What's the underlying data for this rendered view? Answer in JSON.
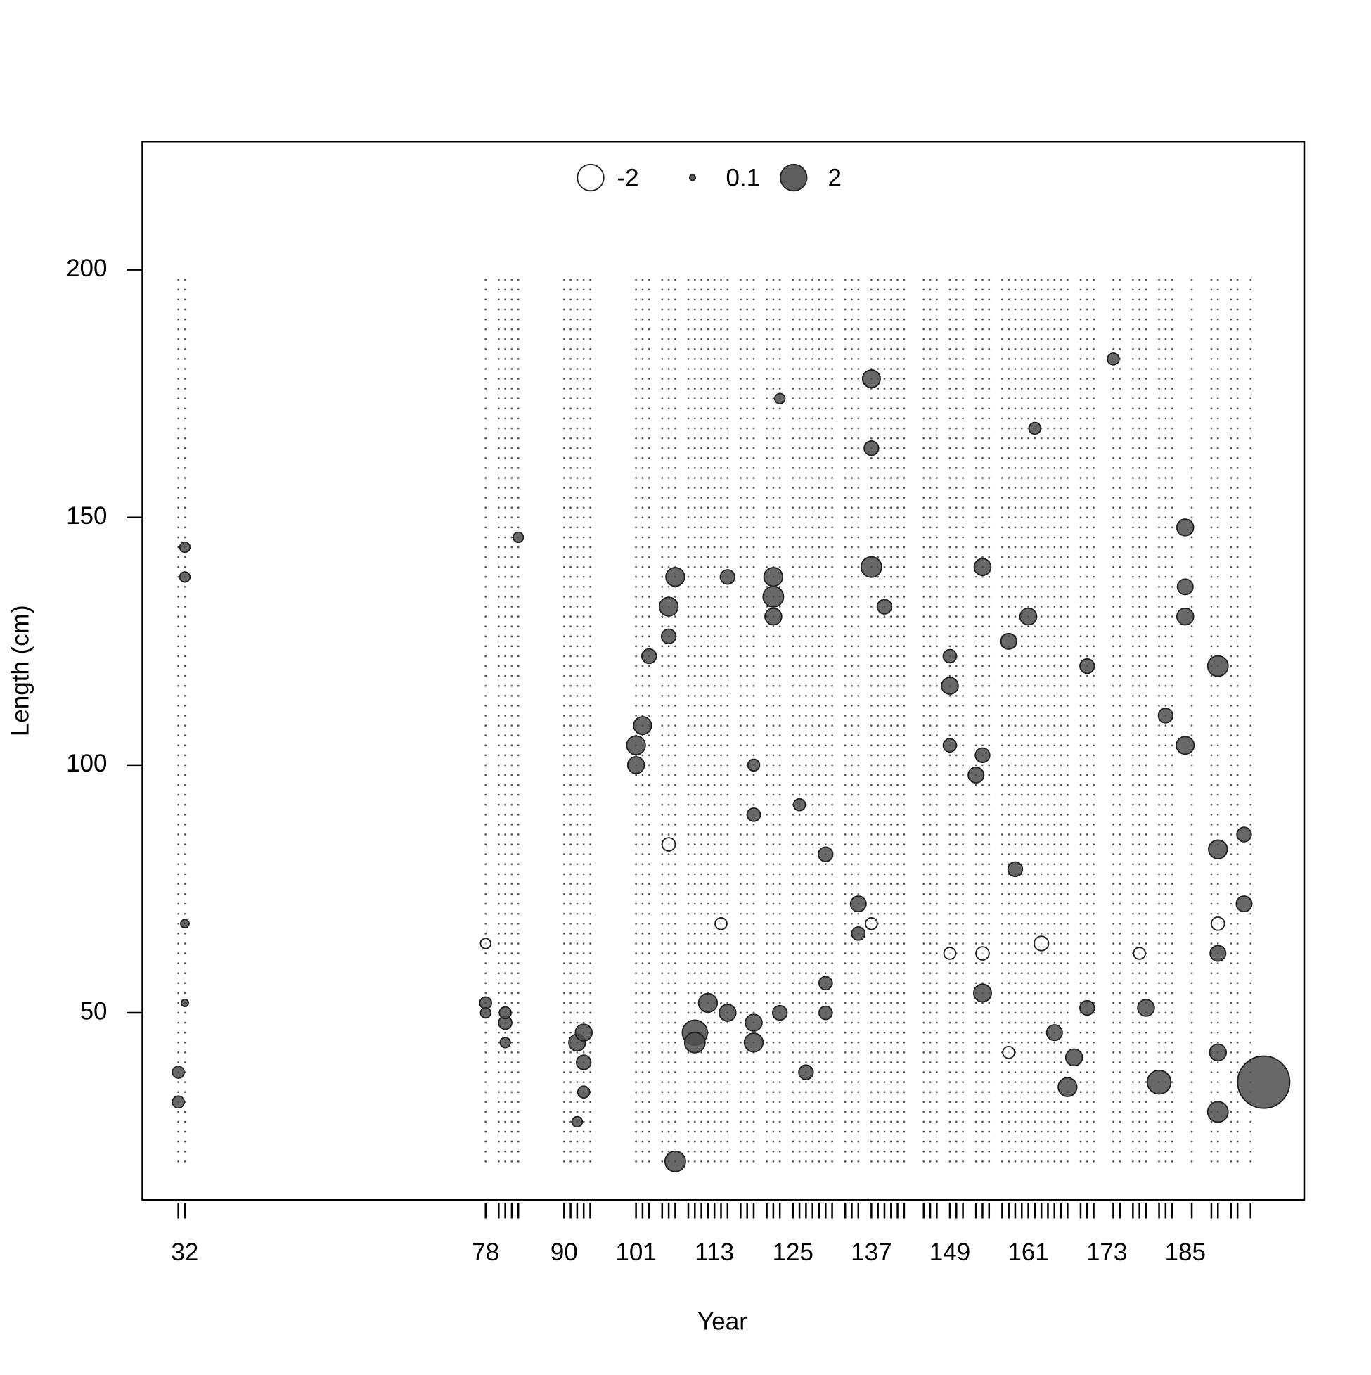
{
  "chart_data": {
    "type": "bubble",
    "xlabel": "Year",
    "ylabel": "Length (cm)",
    "xlim": [
      25.5,
      203.2
    ],
    "ylim": [
      12.2,
      225.9
    ],
    "xticks": [
      32,
      78,
      90,
      101,
      113,
      125,
      137,
      149,
      161,
      173,
      185
    ],
    "yticks": [
      50,
      100,
      150,
      200
    ],
    "legend_values": [
      -2,
      0.1,
      2
    ],
    "pos_color": "#4d4d4d",
    "neg_color": "#ffffff",
    "years": [
      31,
      32,
      78,
      80,
      81,
      82,
      83,
      90,
      91,
      92,
      93,
      94,
      101,
      102,
      103,
      105,
      106,
      107,
      109,
      110,
      111,
      112,
      113,
      114,
      115,
      117,
      118,
      119,
      121,
      122,
      123,
      125,
      126,
      127,
      128,
      129,
      130,
      131,
      133,
      134,
      135,
      137,
      138,
      139,
      140,
      141,
      142,
      145,
      146,
      147,
      149,
      150,
      151,
      153,
      154,
      155,
      157,
      158,
      159,
      160,
      161,
      162,
      163,
      164,
      165,
      166,
      167,
      169,
      170,
      171,
      174,
      175,
      177,
      178,
      179,
      181,
      182,
      183,
      186,
      189,
      190,
      192,
      193,
      195
    ],
    "length_bins": [
      20,
      22,
      24,
      26,
      28,
      30,
      32,
      34,
      36,
      38,
      40,
      42,
      44,
      46,
      48,
      50,
      52,
      54,
      56,
      58,
      60,
      62,
      64,
      66,
      68,
      70,
      72,
      74,
      76,
      78,
      80,
      82,
      84,
      86,
      88,
      90,
      92,
      94,
      96,
      98,
      100,
      102,
      104,
      106,
      108,
      110,
      112,
      114,
      116,
      118,
      120,
      122,
      124,
      126,
      128,
      130,
      132,
      134,
      136,
      138,
      140,
      142,
      144,
      146,
      148,
      150,
      152,
      154,
      156,
      158,
      160,
      162,
      164,
      166,
      168,
      170,
      172,
      174,
      176,
      178,
      180,
      182,
      184,
      186,
      188,
      190,
      192,
      194,
      196,
      198
    ],
    "x": [
      31,
      31,
      32,
      32,
      32,
      32,
      78,
      78,
      81,
      81,
      81,
      83,
      92,
      93,
      93,
      92,
      93,
      101,
      102,
      101,
      103,
      107,
      106,
      107,
      106,
      110,
      110,
      112,
      115,
      115,
      119,
      119,
      119,
      119,
      122,
      122,
      122,
      123,
      123,
      126,
      127,
      130,
      130,
      130,
      135,
      135,
      137,
      137,
      137,
      139,
      149,
      149,
      149,
      153,
      154,
      154,
      154,
      158,
      159,
      161,
      162,
      165,
      167,
      168,
      170,
      170,
      174,
      179,
      181,
      182,
      185,
      185,
      185,
      185,
      190,
      190,
      190,
      190,
      190,
      194,
      194,
      197,
      106,
      154,
      190,
      163,
      137,
      114,
      78,
      178,
      158,
      149
    ],
    "y": [
      38,
      32,
      144,
      138,
      68,
      52,
      52,
      50,
      48,
      50,
      44,
      146,
      44,
      46,
      34,
      28,
      40,
      104,
      108,
      100,
      122,
      20,
      132,
      138,
      126,
      46,
      44,
      52,
      138,
      50,
      44,
      48,
      100,
      90,
      134,
      138,
      130,
      174,
      50,
      92,
      38,
      82,
      56,
      50,
      72,
      66,
      140,
      178,
      164,
      132,
      116,
      122,
      104,
      98,
      102,
      140,
      54,
      125,
      79,
      130,
      168,
      46,
      35,
      41,
      120,
      51,
      182,
      51,
      36,
      110,
      148,
      130,
      104,
      136,
      120,
      83,
      62,
      30,
      42,
      86,
      72,
      36,
      84,
      62,
      68,
      64,
      68,
      68,
      64,
      62,
      42,
      62
    ],
    "values": [
      0.4,
      0.4,
      0.3,
      0.3,
      0.2,
      0.15,
      0.4,
      0.3,
      0.5,
      0.4,
      0.3,
      0.3,
      0.8,
      0.8,
      0.4,
      0.3,
      0.6,
      1.0,
      0.9,
      0.8,
      0.6,
      1.2,
      1.0,
      1.0,
      0.6,
      1.8,
      1.2,
      1.0,
      0.6,
      0.8,
      1.0,
      0.8,
      0.4,
      0.5,
      1.2,
      1.0,
      0.8,
      0.3,
      0.6,
      0.4,
      0.6,
      0.6,
      0.5,
      0.5,
      0.7,
      0.5,
      1.2,
      0.9,
      0.6,
      0.6,
      0.8,
      0.5,
      0.5,
      0.7,
      0.6,
      0.8,
      0.9,
      0.7,
      0.6,
      0.8,
      0.4,
      0.7,
      1.0,
      0.8,
      0.6,
      0.6,
      0.4,
      0.8,
      1.6,
      0.6,
      0.8,
      0.8,
      0.9,
      0.7,
      1.2,
      1.0,
      0.7,
      1.2,
      0.8,
      0.6,
      0.7,
      7.8,
      -0.5,
      -0.5,
      -0.5,
      -0.6,
      -0.4,
      -0.4,
      -0.3,
      -0.4,
      -0.4,
      -0.4
    ]
  }
}
